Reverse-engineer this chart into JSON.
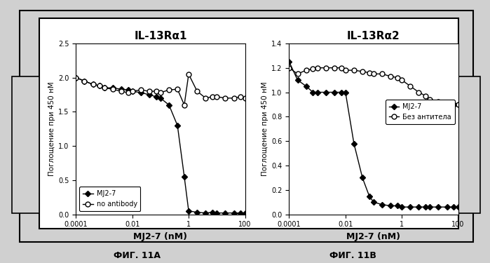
{
  "panel_A": {
    "title": "IL-13Rα1",
    "xlabel": "MJ2-7 (nM)",
    "ylabel": "Поглощение при 450 нМ",
    "ylim": [
      0,
      2.5
    ],
    "yticks": [
      0,
      0.5,
      1.0,
      1.5,
      2.0,
      2.5
    ],
    "xlim": [
      0.0001,
      100
    ],
    "mj27_x": [
      0.0001,
      0.0002,
      0.0004,
      0.0007,
      0.001,
      0.002,
      0.004,
      0.007,
      0.01,
      0.02,
      0.04,
      0.07,
      0.1,
      0.2,
      0.4,
      0.7,
      1.0,
      2.0,
      4.0,
      7.0,
      10.0,
      20.0,
      40.0,
      70.0,
      100.0
    ],
    "mj27_y": [
      2.0,
      1.95,
      1.9,
      1.88,
      1.85,
      1.85,
      1.83,
      1.82,
      1.8,
      1.78,
      1.75,
      1.72,
      1.7,
      1.6,
      1.3,
      0.55,
      0.05,
      0.03,
      0.02,
      0.03,
      0.02,
      0.02,
      0.02,
      0.02,
      0.02
    ],
    "no_ab_x": [
      0.0001,
      0.0002,
      0.0004,
      0.0007,
      0.001,
      0.002,
      0.004,
      0.007,
      0.01,
      0.02,
      0.04,
      0.07,
      0.1,
      0.2,
      0.4,
      0.7,
      1.0,
      2.0,
      4.0,
      7.0,
      10.0,
      20.0,
      40.0,
      70.0,
      100.0
    ],
    "no_ab_y": [
      2.0,
      1.95,
      1.9,
      1.88,
      1.85,
      1.83,
      1.8,
      1.78,
      1.8,
      1.82,
      1.8,
      1.8,
      1.78,
      1.82,
      1.83,
      1.6,
      2.05,
      1.8,
      1.7,
      1.72,
      1.72,
      1.7,
      1.7,
      1.72,
      1.7
    ],
    "legend1": "MJ2-7",
    "legend2": "no antibody"
  },
  "panel_B": {
    "title": "IL-13Rα2",
    "xlabel": "MJ2-7 (nM)",
    "ylabel": "Поглощение при 450 нМ",
    "ylim": [
      0,
      1.4
    ],
    "yticks": [
      0,
      0.2,
      0.4,
      0.6,
      0.8,
      1.0,
      1.2,
      1.4
    ],
    "xlim": [
      0.0001,
      100
    ],
    "mj27_x": [
      0.0001,
      0.0002,
      0.0004,
      0.0007,
      0.001,
      0.002,
      0.004,
      0.007,
      0.01,
      0.02,
      0.04,
      0.07,
      0.1,
      0.2,
      0.4,
      0.7,
      1.0,
      2.0,
      4.0,
      7.0,
      10.0,
      20.0,
      40.0,
      70.0,
      100.0
    ],
    "mj27_y": [
      1.25,
      1.1,
      1.05,
      1.0,
      1.0,
      1.0,
      1.0,
      1.0,
      1.0,
      0.58,
      0.3,
      0.15,
      0.1,
      0.08,
      0.07,
      0.07,
      0.06,
      0.06,
      0.06,
      0.06,
      0.06,
      0.06,
      0.06,
      0.06,
      0.06
    ],
    "no_ab_x": [
      0.0001,
      0.0002,
      0.0004,
      0.0007,
      0.001,
      0.002,
      0.004,
      0.007,
      0.01,
      0.02,
      0.04,
      0.07,
      0.1,
      0.2,
      0.4,
      0.7,
      1.0,
      2.0,
      4.0,
      7.0,
      10.0,
      20.0,
      40.0,
      70.0,
      100.0
    ],
    "no_ab_y": [
      1.2,
      1.15,
      1.18,
      1.19,
      1.2,
      1.2,
      1.2,
      1.2,
      1.18,
      1.18,
      1.17,
      1.16,
      1.15,
      1.15,
      1.13,
      1.12,
      1.1,
      1.05,
      1.0,
      0.97,
      0.94,
      0.92,
      0.9,
      0.9,
      0.9
    ],
    "legend1": "MJ2-7",
    "legend2": "Без антитела"
  },
  "fig_label_A": "ФИГ. 11A",
  "fig_label_B": "ФИГ. 11B",
  "bg_color": "#d0d0d0",
  "marker_filled": "D",
  "marker_open": "o",
  "marker_size": 4
}
